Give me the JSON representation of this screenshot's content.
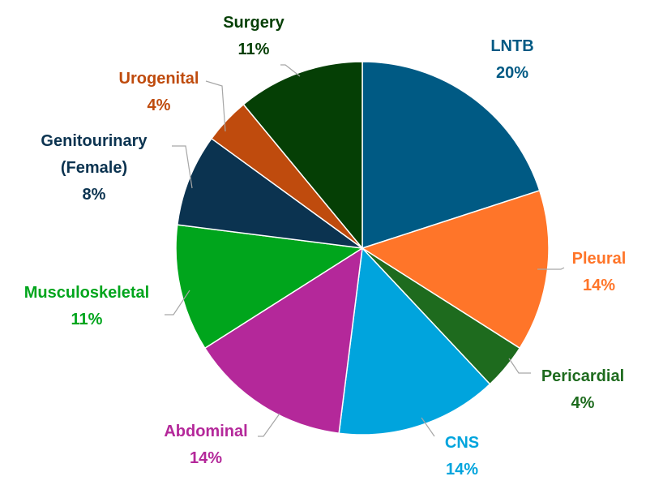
{
  "chart_data": {
    "type": "pie",
    "title": "",
    "start_angle_deg": 0,
    "direction": "clockwise",
    "slices": [
      {
        "label": "LNTB",
        "value": 20,
        "pct_label": "20%",
        "color": "#005A84"
      },
      {
        "label": "Pleural",
        "value": 14,
        "pct_label": "14%",
        "color": "#FF7529"
      },
      {
        "label": "Pericardial",
        "value": 4,
        "pct_label": "4%",
        "color": "#1E6B1E"
      },
      {
        "label": "CNS",
        "value": 14,
        "pct_label": "14%",
        "color": "#00A4DD"
      },
      {
        "label": "Abdominal",
        "value": 14,
        "pct_label": "14%",
        "color": "#B4289A"
      },
      {
        "label": "Musculoskeletal",
        "value": 11,
        "pct_label": "11%",
        "color": "#00A51C"
      },
      {
        "label": "Genitourinary (Female)",
        "label_lines": [
          "Genitourinary",
          "(Female)"
        ],
        "value": 8,
        "pct_label": "8%",
        "color": "#0B3350"
      },
      {
        "label": "Urogenital",
        "value": 4,
        "pct_label": "4%",
        "color": "#BF4B0D"
      },
      {
        "label": "Surgery",
        "value": 11,
        "pct_label": "11%",
        "color": "#053F05"
      }
    ]
  }
}
